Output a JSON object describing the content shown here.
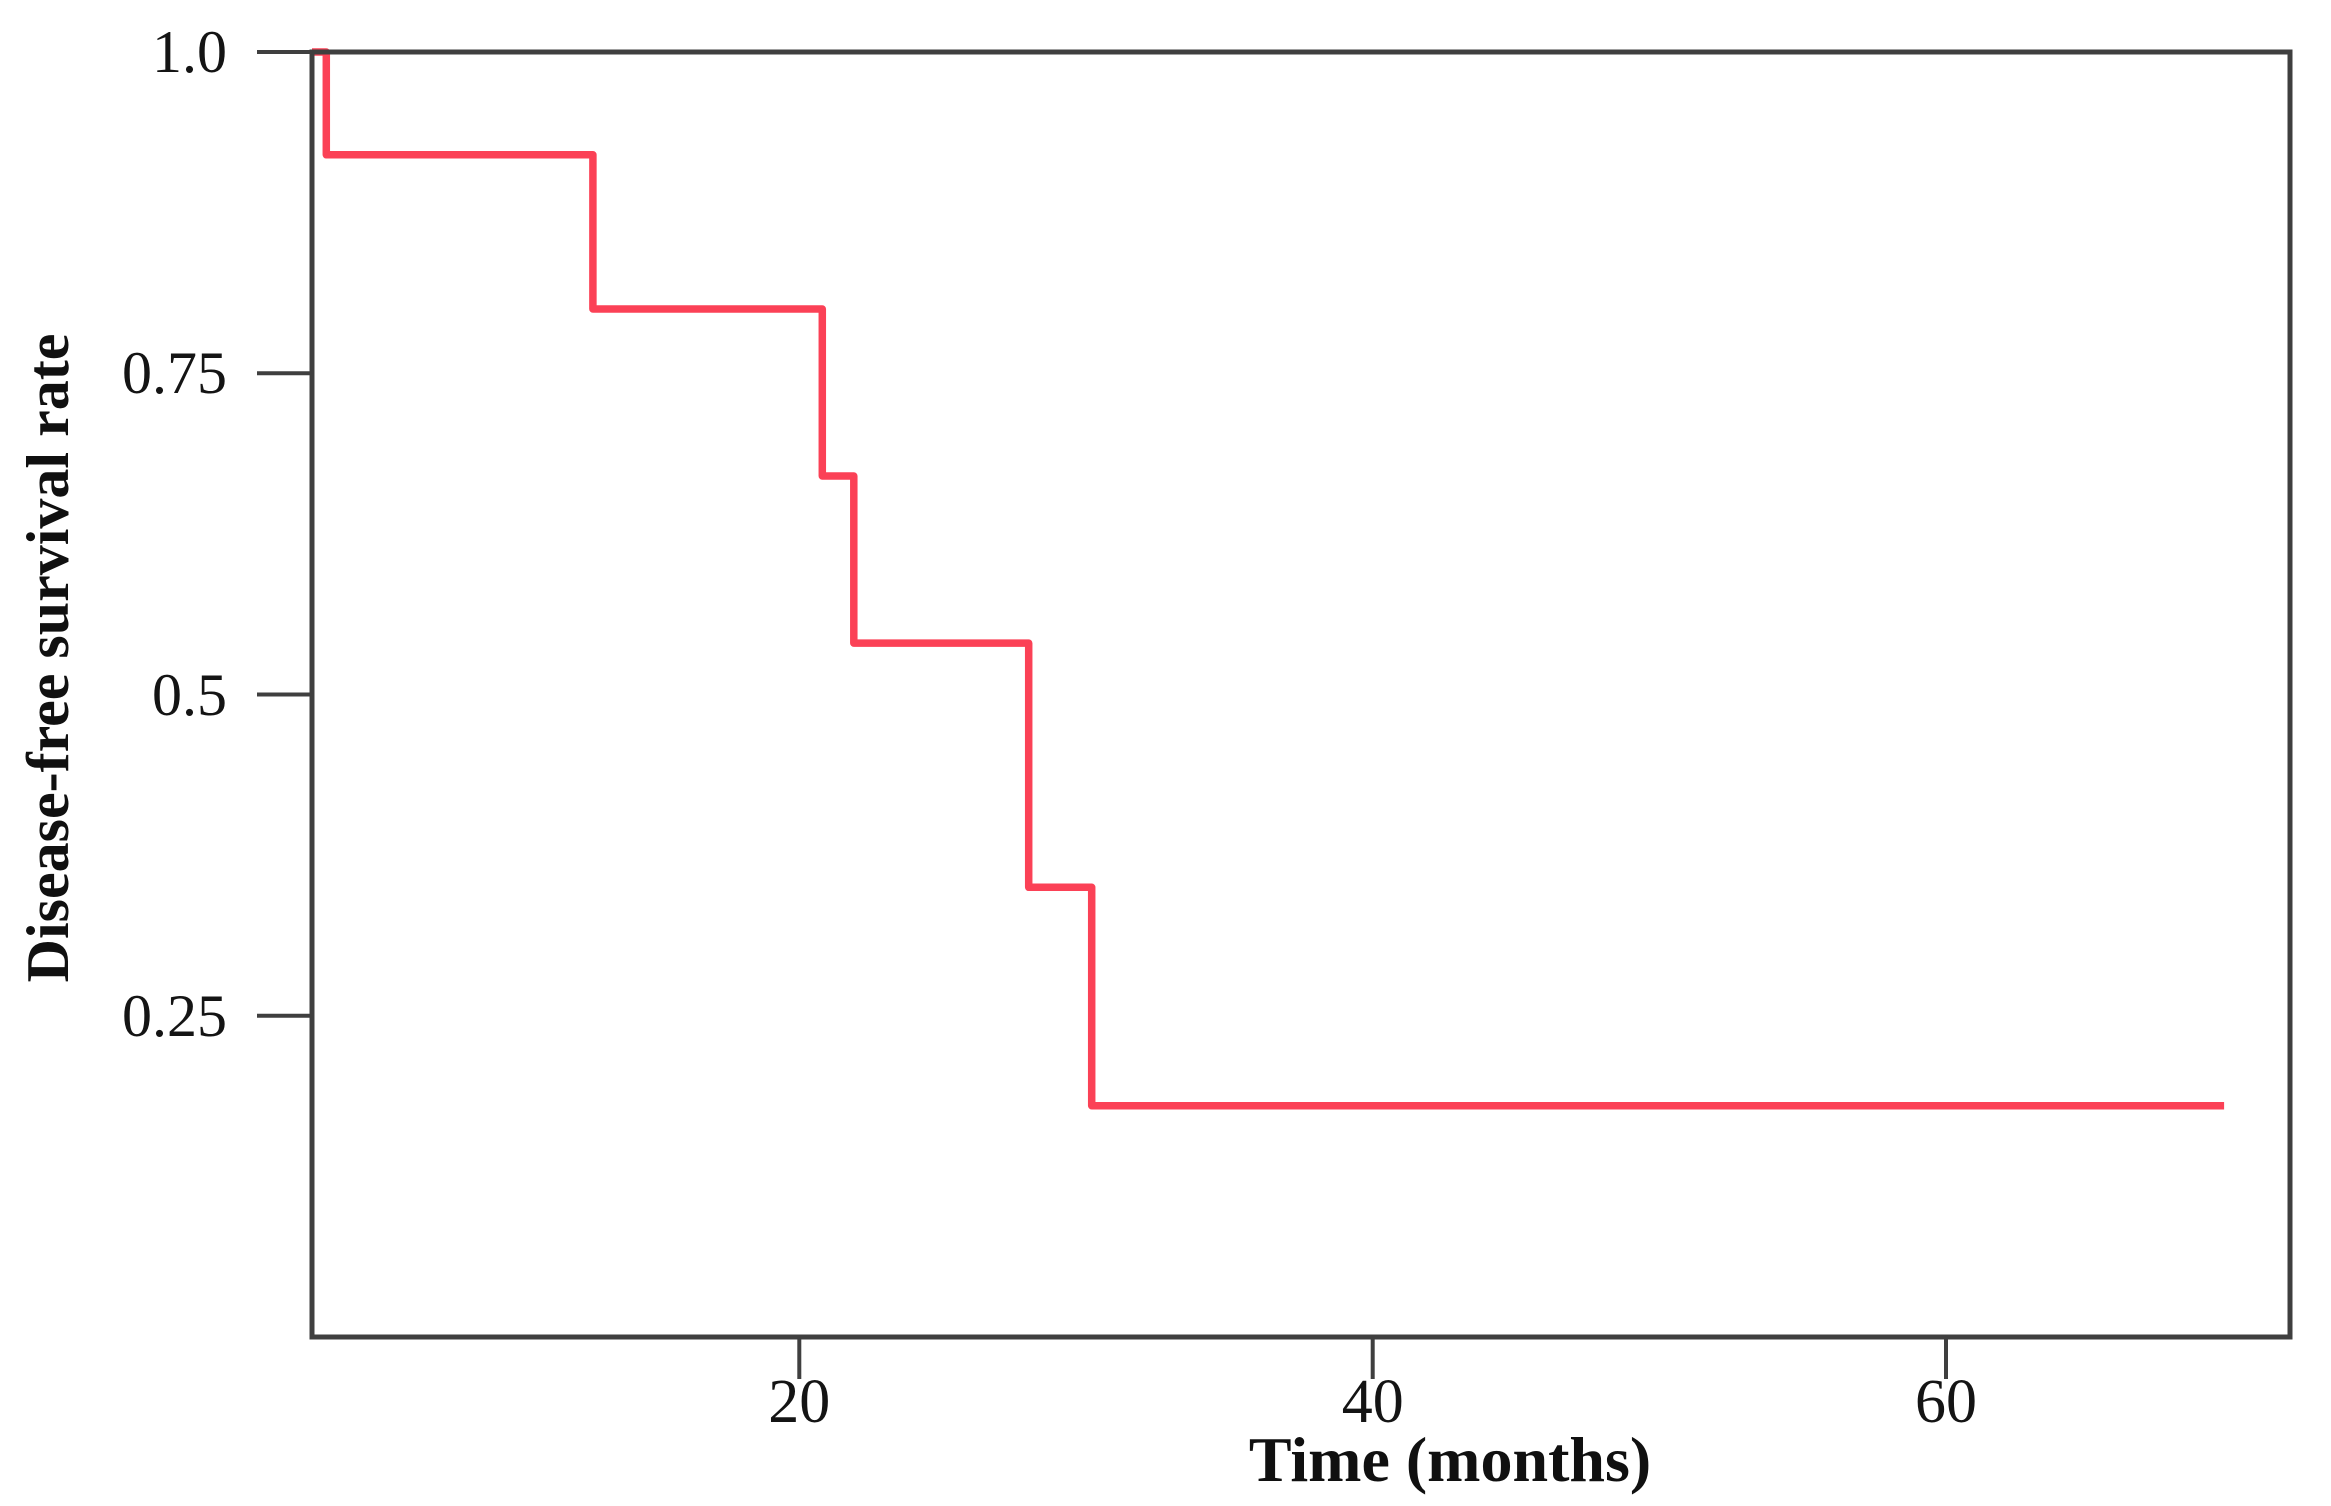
{
  "figure": {
    "background_color": "#ffffff",
    "text_color": "#141414"
  },
  "chart_data": {
    "type": "line",
    "subtype": "kaplan-meier-step-curve",
    "title": "",
    "xlabel": "Time (months)",
    "ylabel": "Disease-free survival rate",
    "xlim": [
      3,
      72
    ],
    "ylim": [
      0,
      1
    ],
    "xticks": [
      20,
      40,
      60
    ],
    "xtick_labels": [
      "20",
      "40",
      "60"
    ],
    "yticks": [
      1.0,
      0.75,
      0.5,
      0.25
    ],
    "ytick_labels": [
      "1.0",
      "0.75",
      "0.5",
      "0.25"
    ],
    "grid": false,
    "legend": null,
    "axis_color": "#3f3f3f",
    "series": [
      {
        "name": "Disease-free survival",
        "color": "#fb4156",
        "step_points": [
          [
            3.0,
            1.0
          ],
          [
            3.5,
            1.0
          ],
          [
            3.5,
            0.92
          ],
          [
            12.8,
            0.92
          ],
          [
            12.8,
            0.8
          ],
          [
            20.8,
            0.8
          ],
          [
            20.8,
            0.67
          ],
          [
            21.9,
            0.67
          ],
          [
            21.9,
            0.54
          ],
          [
            28.0,
            0.54
          ],
          [
            28.0,
            0.35
          ],
          [
            30.2,
            0.35
          ],
          [
            30.2,
            0.18
          ],
          [
            69.7,
            0.18
          ]
        ]
      }
    ]
  }
}
